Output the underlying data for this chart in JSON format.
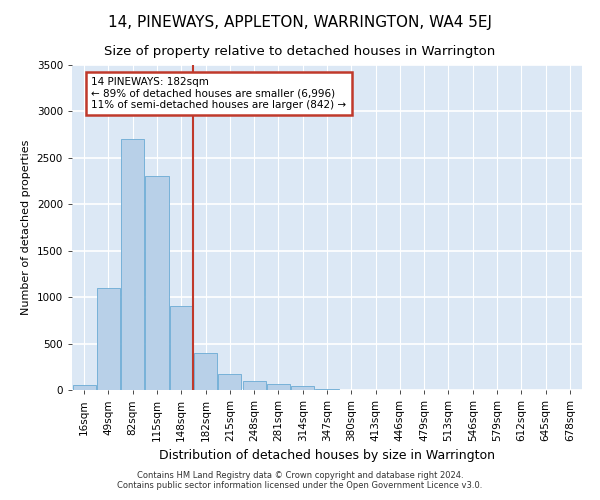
{
  "title": "14, PINEWAYS, APPLETON, WARRINGTON, WA4 5EJ",
  "subtitle": "Size of property relative to detached houses in Warrington",
  "xlabel": "Distribution of detached houses by size in Warrington",
  "ylabel": "Number of detached properties",
  "categories": [
    "16sqm",
    "49sqm",
    "82sqm",
    "115sqm",
    "148sqm",
    "182sqm",
    "215sqm",
    "248sqm",
    "281sqm",
    "314sqm",
    "347sqm",
    "380sqm",
    "413sqm",
    "446sqm",
    "479sqm",
    "513sqm",
    "546sqm",
    "579sqm",
    "612sqm",
    "645sqm",
    "678sqm"
  ],
  "values": [
    50,
    1100,
    2700,
    2300,
    900,
    400,
    175,
    100,
    60,
    40,
    10,
    5,
    3,
    2,
    1,
    0,
    0,
    0,
    0,
    0,
    0
  ],
  "bar_color": "#b8d0e8",
  "bar_edge_color": "#6aaad4",
  "vline_x": 4.5,
  "vline_color": "#c0392b",
  "annotation_title": "14 PINEWAYS: 182sqm",
  "annotation_line1": "← 89% of detached houses are smaller (6,996)",
  "annotation_line2": "11% of semi-detached houses are larger (842) →",
  "annotation_box_color": "#c0392b",
  "ylim": [
    0,
    3500
  ],
  "yticks": [
    0,
    500,
    1000,
    1500,
    2000,
    2500,
    3000,
    3500
  ],
  "background_color": "#dce8f5",
  "grid_color": "#ffffff",
  "footer_line1": "Contains HM Land Registry data © Crown copyright and database right 2024.",
  "footer_line2": "Contains public sector information licensed under the Open Government Licence v3.0.",
  "title_fontsize": 11,
  "subtitle_fontsize": 9.5,
  "tick_fontsize": 7.5,
  "ylabel_fontsize": 8,
  "xlabel_fontsize": 9,
  "annotation_fontsize": 7.5,
  "footer_fontsize": 6
}
